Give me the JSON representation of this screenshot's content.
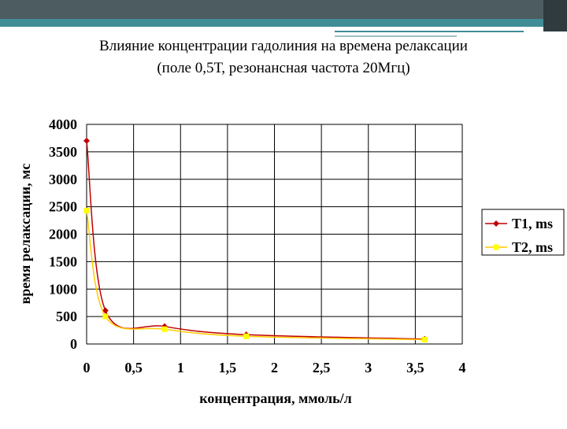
{
  "chart_data": {
    "type": "line",
    "title": "Влияние концентрации гадолиния на времена релаксации",
    "subtitle": "(поле 0,5Т, резонансная частота 20Мгц)",
    "x_label": "концентрация, ммоль/л",
    "y_label": "время релаксации, мс",
    "smooth": true,
    "grid": true,
    "legend": "right",
    "series": [
      {
        "name": "T1, ms",
        "color": "#c00000",
        "marker_color": "#c00000",
        "x": [
          0,
          0.2,
          0.83,
          1.7,
          3.6
        ],
        "values": [
          3700,
          610,
          320,
          170,
          90
        ]
      },
      {
        "name": "T2, ms",
        "color": "#ffcc00",
        "marker_color": "#ffff00",
        "x": [
          0,
          0.2,
          0.83,
          1.7,
          3.6
        ],
        "values": [
          2430,
          500,
          270,
          140,
          80
        ]
      }
    ],
    "xlim": [
      0,
      4
    ],
    "xticks": [
      0,
      {
        "value": 0.5,
        "label": "0,5"
      },
      1,
      {
        "value": 1.5,
        "label": "1,5"
      },
      2,
      {
        "value": 2.5,
        "label": "2,5"
      },
      3,
      {
        "value": 3.5,
        "label": "3,5"
      },
      4
    ],
    "ylim": [
      0,
      4000
    ],
    "yticks": [
      0,
      500,
      1000,
      1500,
      2000,
      2500,
      3000,
      3500,
      4000
    ]
  }
}
